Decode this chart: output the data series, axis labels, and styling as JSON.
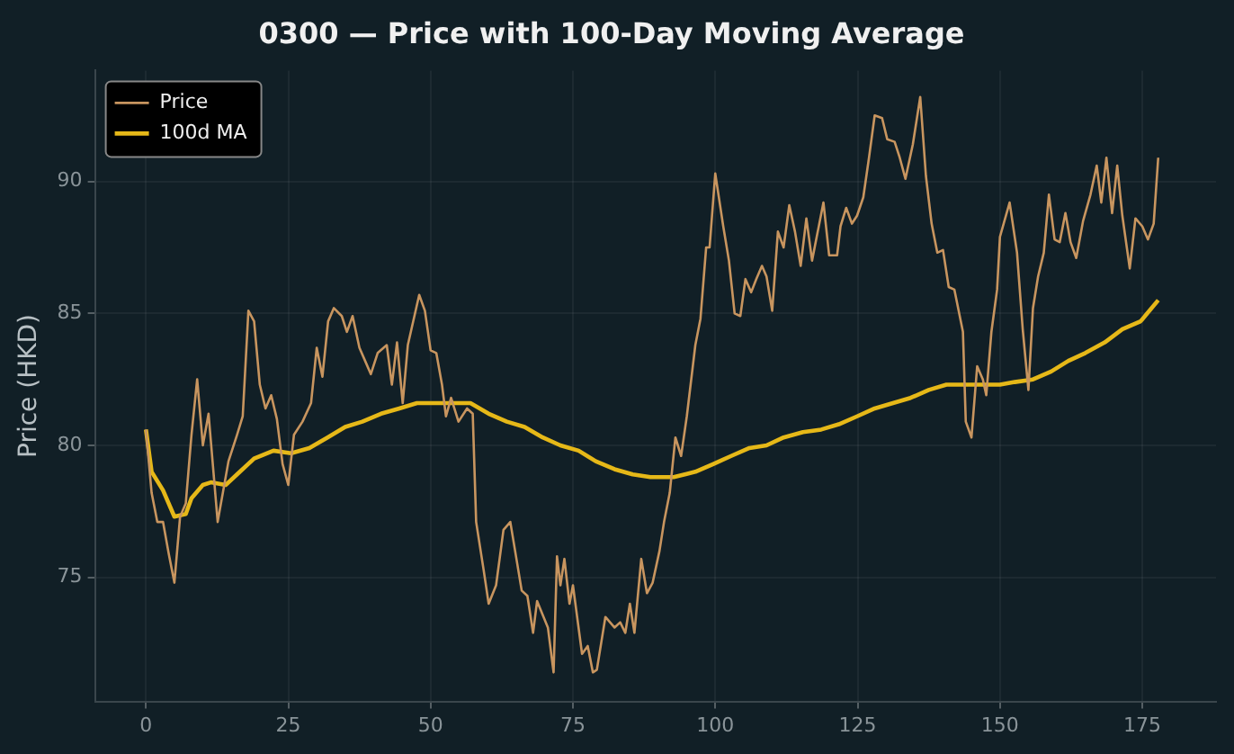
{
  "chart_data": {
    "type": "line",
    "title": "0300 — Price with 100-Day Moving Average",
    "ylabel": "Price (HKD)",
    "xlim": [
      -8.95,
      187.95
    ],
    "xticks": [
      0,
      25,
      50,
      75,
      100,
      125,
      150,
      175
    ],
    "ylim": [
      70.3,
      94.2
    ],
    "yticks": [
      75,
      80,
      85,
      90
    ],
    "grid": true,
    "legend": "top left",
    "marker": "none",
    "series": [
      {
        "name": "Price",
        "color": "#c8955f",
        "x": [
          0,
          1,
          2,
          3,
          4,
          5,
          6,
          7,
          8,
          9,
          10,
          11,
          12.6,
          14.5,
          16,
          17,
          18,
          19,
          20,
          21,
          22,
          23,
          24,
          25,
          26,
          27.5,
          29,
          30,
          31,
          32,
          33,
          34.4,
          35.3,
          36.3,
          37.5,
          38.5,
          39.5,
          40.7,
          42.3,
          43.2,
          44.1,
          45.1,
          46,
          48,
          49,
          50,
          51,
          52,
          52.7,
          53.6,
          54.9,
          56.4,
          57.4,
          58,
          59.3,
          60.2,
          61.5,
          62.8,
          64,
          66,
          67,
          68,
          68.7,
          70.6,
          71.6,
          72.2,
          72.8,
          73.5,
          74.4,
          75,
          76.6,
          77.6,
          78.5,
          79.2,
          80.7,
          82.3,
          83.3,
          84.2,
          85,
          85.8,
          87,
          88,
          89,
          90.2,
          91,
          92,
          93,
          94,
          95,
          96.5,
          97.4,
          98.4,
          99,
          100,
          101.4,
          102.4,
          103.4,
          104.4,
          105.3,
          106.3,
          107.2,
          108.2,
          109,
          110,
          111,
          112,
          113,
          114,
          115,
          116,
          117,
          118,
          119,
          120,
          121.4,
          122,
          123,
          124,
          124.9,
          126,
          127,
          128,
          129.3,
          130.2,
          131.5,
          132.4,
          133.4,
          134.7,
          136,
          137,
          138,
          139,
          140,
          141,
          142,
          143.5,
          144,
          145,
          146,
          147,
          147.6,
          148.5,
          149.5,
          150,
          151.7,
          153,
          154,
          155,
          155.8,
          156.7,
          157.7,
          158.6,
          159.6,
          160.5,
          161.5,
          162.4,
          163.4,
          164.6,
          165.9,
          167,
          167.8,
          168.7,
          169.7,
          170.6,
          171.5,
          172.8,
          173.8,
          175,
          176,
          177,
          177.8
        ],
        "values": [
          80.6,
          78.2,
          77.1,
          77.1,
          75.9,
          74.8,
          77.3,
          77.8,
          80.4,
          82.5,
          80.0,
          81.2,
          77.1,
          79.4,
          80.4,
          81.1,
          85.1,
          84.7,
          82.3,
          81.4,
          81.9,
          81.0,
          79.3,
          78.5,
          80.4,
          80.9,
          81.6,
          83.7,
          82.6,
          84.7,
          85.2,
          84.9,
          84.3,
          84.9,
          83.7,
          83.2,
          82.7,
          83.5,
          83.8,
          82.3,
          83.9,
          81.6,
          83.8,
          85.7,
          85.1,
          83.6,
          83.5,
          82.3,
          81.1,
          81.8,
          80.9,
          81.4,
          81.2,
          77.1,
          75.3,
          74.0,
          74.7,
          76.8,
          77.1,
          74.5,
          74.3,
          72.9,
          74.1,
          73.1,
          71.4,
          75.8,
          74.7,
          75.7,
          74.0,
          74.7,
          72.1,
          72.4,
          71.4,
          71.5,
          73.5,
          73.1,
          73.3,
          72.9,
          74.0,
          72.9,
          75.7,
          74.4,
          74.8,
          76.0,
          77.1,
          78.2,
          80.3,
          79.6,
          81.1,
          83.8,
          84.8,
          87.5,
          87.5,
          90.3,
          88.3,
          87.0,
          85.0,
          84.9,
          86.3,
          85.8,
          86.3,
          86.8,
          86.4,
          85.1,
          88.1,
          87.5,
          89.1,
          88.1,
          86.8,
          88.6,
          87.0,
          88.1,
          89.2,
          87.2,
          87.2,
          88.3,
          89.0,
          88.4,
          88.7,
          89.4,
          90.9,
          92.5,
          92.4,
          91.6,
          91.5,
          90.9,
          90.1,
          91.4,
          93.2,
          90.2,
          88.4,
          87.3,
          87.4,
          86.0,
          85.9,
          84.3,
          80.9,
          80.3,
          83.0,
          82.5,
          81.9,
          84.3,
          85.9,
          87.9,
          89.2,
          87.3,
          84.4,
          82.1,
          85.2,
          86.4,
          87.3,
          89.5,
          87.8,
          87.7,
          88.8,
          87.7,
          87.1,
          88.5,
          89.5,
          90.6,
          89.2,
          90.9,
          88.8,
          90.6,
          88.7,
          86.7,
          88.6,
          88.3,
          87.8,
          88.4,
          90.9
        ]
      },
      {
        "name": "100d MA",
        "color": "#e6b818",
        "x": [
          0,
          1,
          3,
          5,
          7,
          8,
          10,
          11.4,
          14,
          16,
          19,
          22.4,
          25.5,
          28.7,
          31.9,
          35,
          38,
          41.3,
          44.5,
          47.6,
          50.8,
          55,
          57,
          60.2,
          63.4,
          66.5,
          69.7,
          72.8,
          76,
          79,
          82.3,
          85.5,
          88.6,
          92.7,
          96.5,
          99.7,
          102.8,
          106,
          109,
          112,
          115.4,
          118.6,
          121.7,
          124.9,
          128,
          131.2,
          134.3,
          137.5,
          140.6,
          143.8,
          147,
          150,
          152.6,
          155.8,
          159,
          162,
          165,
          168.4,
          171.5,
          174.7,
          177.8
        ],
        "values": [
          80.6,
          79.0,
          78.3,
          77.3,
          77.4,
          78.0,
          78.5,
          78.6,
          78.5,
          78.9,
          79.5,
          79.8,
          79.7,
          79.9,
          80.3,
          80.7,
          80.9,
          81.2,
          81.4,
          81.6,
          81.6,
          81.6,
          81.6,
          81.2,
          80.9,
          80.7,
          80.3,
          80.0,
          79.8,
          79.4,
          79.1,
          78.9,
          78.8,
          78.8,
          79.0,
          79.3,
          79.6,
          79.9,
          80.0,
          80.3,
          80.5,
          80.6,
          80.8,
          81.1,
          81.4,
          81.6,
          81.8,
          82.1,
          82.3,
          82.3,
          82.3,
          82.3,
          82.4,
          82.5,
          82.8,
          83.2,
          83.5,
          83.9,
          84.4,
          84.7,
          85.5
        ]
      }
    ]
  }
}
